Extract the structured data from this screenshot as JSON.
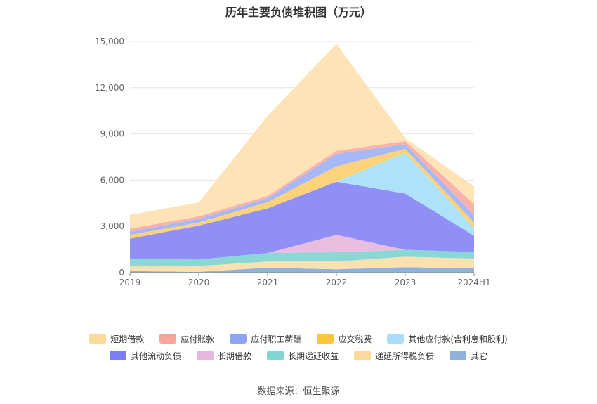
{
  "chart_data": {
    "type": "area",
    "stacked": true,
    "title": "历年主要负债堆积图（万元）",
    "categories": [
      "2019",
      "2020",
      "2021",
      "2022",
      "2023",
      "2024H1"
    ],
    "yticks": [
      "0",
      "3,000",
      "6,000",
      "9,000",
      "12,000",
      "15,000"
    ],
    "ylim": [
      0,
      15000
    ],
    "grid": true,
    "legend_position": "bottom",
    "series": [
      {
        "name": "其它",
        "color": "#8fb1de",
        "values": [
          100,
          50,
          320,
          220,
          350,
          280
        ]
      },
      {
        "name": "递延所得税负债",
        "color": "#fde0b0",
        "values": [
          300,
          380,
          400,
          500,
          680,
          630
        ]
      },
      {
        "name": "长期递延收益",
        "color": "#8ad8d6",
        "values": [
          500,
          420,
          550,
          600,
          450,
          430
        ]
      },
      {
        "name": "长期借款",
        "color": "#e8bde0",
        "values": [
          0,
          0,
          0,
          1130,
          0,
          0
        ]
      },
      {
        "name": "其他流动负债",
        "color": "#8f8ff6",
        "values": [
          1300,
          2200,
          2900,
          3450,
          3650,
          1050
        ]
      },
      {
        "name": "其他应付款(含利息和股利)",
        "color": "#aee2fb",
        "values": [
          0,
          0,
          0,
          0,
          2650,
          500
        ]
      },
      {
        "name": "应交税费",
        "color": "#fcd37a",
        "values": [
          250,
          200,
          400,
          1000,
          250,
          350
        ]
      },
      {
        "name": "应付职工薪酬",
        "color": "#a7b8f6",
        "values": [
          200,
          250,
          250,
          800,
          300,
          500
        ]
      },
      {
        "name": "应付账款",
        "color": "#f8b2ae",
        "values": [
          200,
          150,
          150,
          200,
          200,
          700
        ]
      },
      {
        "name": "短期借款",
        "color": "#fee3b6",
        "values": [
          900,
          900,
          5200,
          6950,
          200,
          1150
        ]
      }
    ]
  },
  "legend": {
    "row1": [
      {
        "label": "短期借款",
        "color": "#fcd998"
      },
      {
        "label": "应付账款",
        "color": "#f6a49c"
      },
      {
        "label": "应付职工薪酬",
        "color": "#8fa4f5"
      },
      {
        "label": "应交税费",
        "color": "#fbc53c"
      },
      {
        "label": "其他应付款(含利息和股利)",
        "color": "#a8def9"
      }
    ],
    "row2": [
      {
        "label": "其他流动负债",
        "color": "#7b7ff5"
      },
      {
        "label": "长期借款",
        "color": "#e7b6de"
      },
      {
        "label": "长期递延收益",
        "color": "#7fd6d3"
      },
      {
        "label": "递延所得税负债",
        "color": "#fed89a"
      },
      {
        "label": "其它",
        "color": "#8fb1de"
      }
    ]
  },
  "source": "数据来源：恒生聚源"
}
